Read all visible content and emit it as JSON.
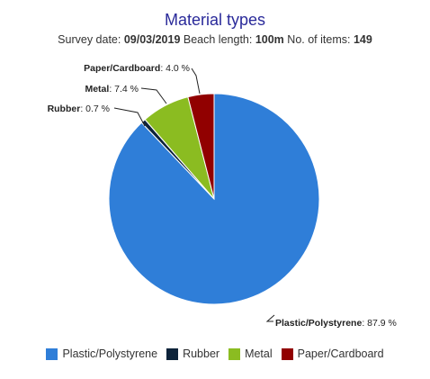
{
  "title": "Material types",
  "subtitle": {
    "date_label": "Survey date:",
    "date_value": "09/03/2019",
    "length_label": "Beach length:",
    "length_value": "100m",
    "items_label": "No. of items:",
    "items_value": "149"
  },
  "chart_data": {
    "type": "pie",
    "title": "Material types",
    "series": [
      {
        "name": "Plastic/Polystyrene",
        "value": 87.9,
        "label": "Plastic/Polystyrene",
        "value_text": ": 87.9 %",
        "color": "#2f7ed8"
      },
      {
        "name": "Rubber",
        "value": 0.7,
        "label": "Rubber",
        "value_text": ": 0.7 %",
        "color": "#0d233a"
      },
      {
        "name": "Metal",
        "value": 7.4,
        "label": "Metal",
        "value_text": ": 7.4 %",
        "color": "#8bbc21"
      },
      {
        "name": "Paper/Cardboard",
        "value": 4.0,
        "label": "Paper/Cardboard",
        "value_text": ": 4.0 %",
        "color": "#910000"
      }
    ],
    "legend_position": "bottom"
  }
}
